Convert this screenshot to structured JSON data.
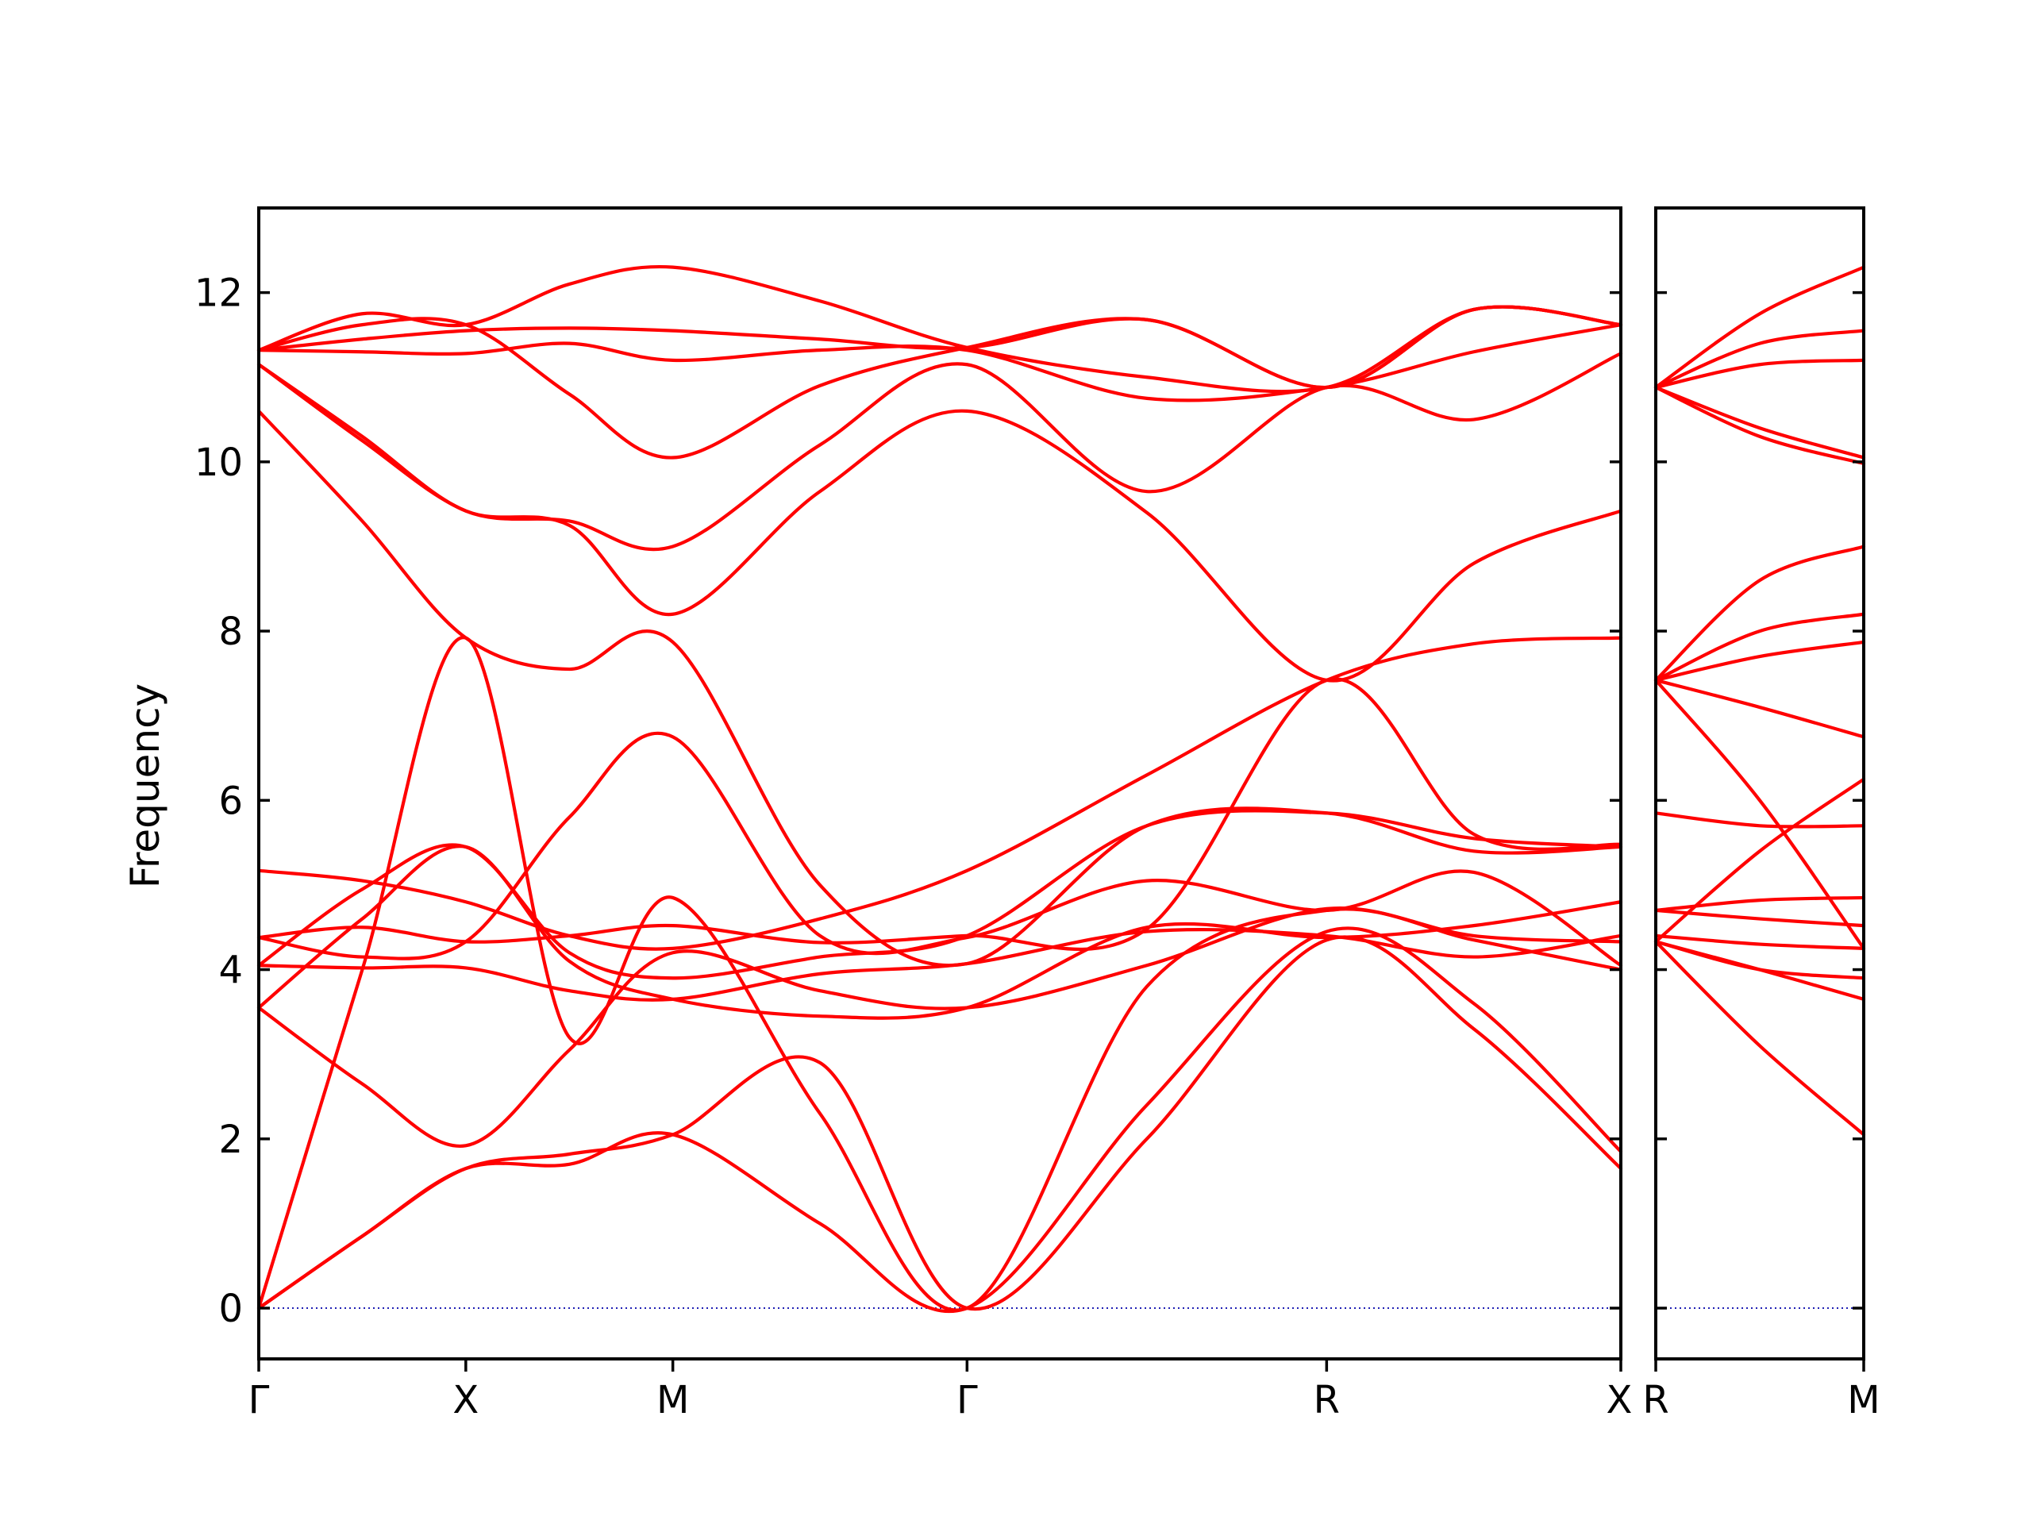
{
  "chart_data": {
    "type": "line",
    "ylabel": "Frequency",
    "ylim": [
      -0.6,
      13
    ],
    "yticks": [
      0,
      2,
      4,
      6,
      8,
      10,
      12
    ],
    "grid": false,
    "legend": "none",
    "colors": {
      "bands": "#ff0000",
      "zero_line": "#1f1fb4",
      "frame": "#000000"
    },
    "panels": [
      {
        "name": "main",
        "xlim": [
          0,
          3.75
        ],
        "high_symmetry_points": [
          {
            "label": "Γ",
            "x": 0
          },
          {
            "label": "X",
            "x": 0.57
          },
          {
            "label": "M",
            "x": 1.14
          },
          {
            "label": "Γ",
            "x": 1.95
          },
          {
            "label": "R",
            "x": 2.94
          },
          {
            "label": "X",
            "x": 3.75
          }
        ],
        "bands": [
          {
            "x": [
              0,
              0.285,
              0.57,
              0.855,
              1.14,
              1.545,
              1.95,
              2.445,
              2.94,
              3.345,
              3.75
            ],
            "y": [
              0,
              0.85,
              1.65,
              1.82,
              2.05,
              2.9,
              0,
              2.0,
              4.35,
              3.3,
              1.65
            ]
          },
          {
            "x": [
              0,
              0.285,
              0.57,
              0.855,
              1.14,
              1.545,
              1.95,
              2.445,
              2.94,
              3.345,
              3.75
            ],
            "y": [
              0,
              0.85,
              1.65,
              1.7,
              2.05,
              1.0,
              0,
              2.4,
              4.45,
              3.6,
              1.85
            ]
          },
          {
            "x": [
              0,
              0.285,
              0.57,
              0.855,
              1.14,
              1.545,
              1.95,
              2.445,
              2.94,
              3.345,
              3.75
            ],
            "y": [
              0,
              4.0,
              7.92,
              3.2,
              4.85,
              2.3,
              0,
              3.8,
              4.7,
              4.35,
              4.0
            ]
          },
          {
            "x": [
              0,
              0.285,
              0.57,
              0.855,
              1.14,
              1.545,
              1.95,
              2.445,
              2.94,
              3.345,
              3.75
            ],
            "y": [
              3.55,
              2.65,
              1.92,
              3.05,
              4.2,
              3.75,
              3.55,
              4.05,
              4.72,
              4.4,
              4.33
            ]
          },
          {
            "x": [
              0,
              0.285,
              0.57,
              0.855,
              1.14,
              1.545,
              1.95,
              2.445,
              2.94,
              3.345,
              3.75
            ],
            "y": [
              3.55,
              4.6,
              5.45,
              4.1,
              3.65,
              3.45,
              3.55,
              4.5,
              4.38,
              4.52,
              4.8
            ]
          },
          {
            "x": [
              0,
              0.285,
              0.57,
              0.855,
              1.14,
              1.545,
              1.95,
              2.445,
              2.94,
              3.345,
              3.75
            ],
            "y": [
              4.05,
              4.02,
              4.02,
              3.75,
              3.65,
              3.95,
              4.07,
              4.45,
              4.4,
              4.15,
              4.4
            ]
          },
          {
            "x": [
              0,
              0.285,
              0.57,
              0.855,
              1.14,
              1.545,
              1.95,
              2.445,
              2.94,
              3.345,
              3.75
            ],
            "y": [
              4.05,
              4.95,
              5.45,
              4.2,
              3.9,
              4.15,
              4.4,
              5.7,
              5.85,
              5.55,
              5.45
            ]
          },
          {
            "x": [
              0,
              0.285,
              0.57,
              0.855,
              1.14,
              1.545,
              1.95,
              2.445,
              2.94,
              3.345,
              3.75
            ],
            "y": [
              4.38,
              4.5,
              4.33,
              4.4,
              4.52,
              4.32,
              4.4,
              4.48,
              7.42,
              5.6,
              5.48
            ]
          },
          {
            "x": [
              0,
              0.285,
              0.57,
              0.855,
              1.14,
              1.545,
              1.95,
              2.445,
              2.94,
              3.345,
              3.75
            ],
            "y": [
              4.38,
              4.15,
              4.33,
              5.8,
              6.75,
              4.4,
              4.38,
              5.05,
              4.7,
              5.15,
              4.05
            ]
          },
          {
            "x": [
              0,
              0.285,
              0.57,
              0.855,
              1.14,
              1.545,
              1.95,
              2.445,
              2.94,
              3.345,
              3.75
            ],
            "y": [
              5.17,
              5.05,
              4.8,
              4.4,
              4.25,
              4.6,
              5.17,
              6.3,
              7.42,
              7.85,
              7.92
            ]
          },
          {
            "x": [
              0,
              0.285,
              0.57,
              0.855,
              1.14,
              1.545,
              1.95,
              2.445,
              2.94,
              3.345,
              3.75
            ],
            "y": [
              10.6,
              9.3,
              7.92,
              7.55,
              7.87,
              5.0,
              4.07,
              5.7,
              5.85,
              5.4,
              5.45
            ]
          },
          {
            "x": [
              0,
              0.285,
              0.57,
              0.855,
              1.14,
              1.545,
              1.95,
              2.445,
              2.94,
              3.345,
              3.75
            ],
            "y": [
              11.15,
              10.25,
              9.42,
              9.25,
              8.2,
              9.65,
              10.6,
              9.4,
              7.42,
              8.8,
              9.42
            ]
          },
          {
            "x": [
              0,
              0.285,
              0.57,
              0.855,
              1.14,
              1.545,
              1.95,
              2.445,
              2.94,
              3.345,
              3.75
            ],
            "y": [
              11.15,
              10.3,
              9.42,
              9.3,
              9.0,
              10.2,
              11.15,
              9.65,
              10.88,
              10.5,
              11.28
            ]
          },
          {
            "x": [
              0,
              0.285,
              0.57,
              0.855,
              1.14,
              1.545,
              1.95,
              2.445,
              2.94,
              3.345,
              3.75
            ],
            "y": [
              11.32,
              11.3,
              11.28,
              11.4,
              11.2,
              11.32,
              11.32,
              10.75,
              10.88,
              11.3,
              11.62
            ]
          },
          {
            "x": [
              0,
              0.285,
              0.57,
              0.855,
              1.14,
              1.545,
              1.95,
              2.445,
              2.94,
              3.345,
              3.75
            ],
            "y": [
              11.32,
              11.62,
              11.62,
              10.8,
              10.05,
              10.9,
              11.35,
              11.68,
              10.88,
              11.8,
              11.62
            ]
          },
          {
            "x": [
              0,
              0.285,
              0.57,
              0.855,
              1.14,
              1.545,
              1.95,
              2.445,
              2.94,
              3.345,
              3.75
            ],
            "y": [
              11.32,
              11.45,
              11.55,
              11.58,
              11.55,
              11.45,
              11.35,
              11.68,
              10.88,
              11.8,
              11.62
            ]
          },
          {
            "x": [
              0,
              0.285,
              0.57,
              0.855,
              1.14,
              1.545,
              1.95,
              2.445,
              2.94,
              3.345,
              3.75
            ],
            "y": [
              11.32,
              11.75,
              11.62,
              12.1,
              12.3,
              11.9,
              11.35,
              11.0,
              10.88,
              11.8,
              11.62
            ]
          }
        ]
      },
      {
        "name": "side",
        "xlim": [
          0,
          0.57
        ],
        "high_symmetry_points": [
          {
            "label": "R",
            "x": 0
          },
          {
            "label": "M",
            "x": 0.57
          }
        ],
        "bands": [
          {
            "x": [
              0,
              0.285,
              0.57
            ],
            "y": [
              4.33,
              3.1,
              2.05
            ]
          },
          {
            "x": [
              0,
              0.285,
              0.57
            ],
            "y": [
              4.33,
              4.0,
              3.65
            ]
          },
          {
            "x": [
              0,
              0.285,
              0.57
            ],
            "y": [
              4.33,
              4.0,
              3.9
            ]
          },
          {
            "x": [
              0,
              0.285,
              0.57
            ],
            "y": [
              4.4,
              4.3,
              4.25
            ]
          },
          {
            "x": [
              0,
              0.285,
              0.57
            ],
            "y": [
              4.7,
              4.6,
              4.52
            ]
          },
          {
            "x": [
              0,
              0.285,
              0.57
            ],
            "y": [
              4.7,
              4.82,
              4.85
            ]
          },
          {
            "x": [
              0,
              0.285,
              0.57
            ],
            "y": [
              5.85,
              5.7,
              5.7
            ]
          },
          {
            "x": [
              0,
              0.285,
              0.57
            ],
            "y": [
              4.33,
              5.4,
              6.25
            ]
          },
          {
            "x": [
              0,
              0.285,
              0.57
            ],
            "y": [
              7.42,
              6.0,
              4.25
            ]
          },
          {
            "x": [
              0,
              0.285,
              0.57
            ],
            "y": [
              7.42,
              7.1,
              6.75
            ]
          },
          {
            "x": [
              0,
              0.285,
              0.57
            ],
            "y": [
              7.42,
              7.7,
              7.87
            ]
          },
          {
            "x": [
              0,
              0.285,
              0.57
            ],
            "y": [
              7.42,
              8.0,
              8.2
            ]
          },
          {
            "x": [
              0,
              0.285,
              0.57
            ],
            "y": [
              7.42,
              8.6,
              9.0
            ]
          },
          {
            "x": [
              0,
              0.285,
              0.57
            ],
            "y": [
              10.88,
              10.3,
              9.98
            ]
          },
          {
            "x": [
              0,
              0.285,
              0.57
            ],
            "y": [
              10.88,
              10.4,
              10.05
            ]
          },
          {
            "x": [
              0,
              0.285,
              0.57
            ],
            "y": [
              10.88,
              11.15,
              11.2
            ]
          },
          {
            "x": [
              0,
              0.285,
              0.57
            ],
            "y": [
              10.88,
              11.4,
              11.55
            ]
          },
          {
            "x": [
              0,
              0.285,
              0.57
            ],
            "y": [
              10.88,
              11.75,
              12.3
            ]
          }
        ]
      }
    ]
  }
}
